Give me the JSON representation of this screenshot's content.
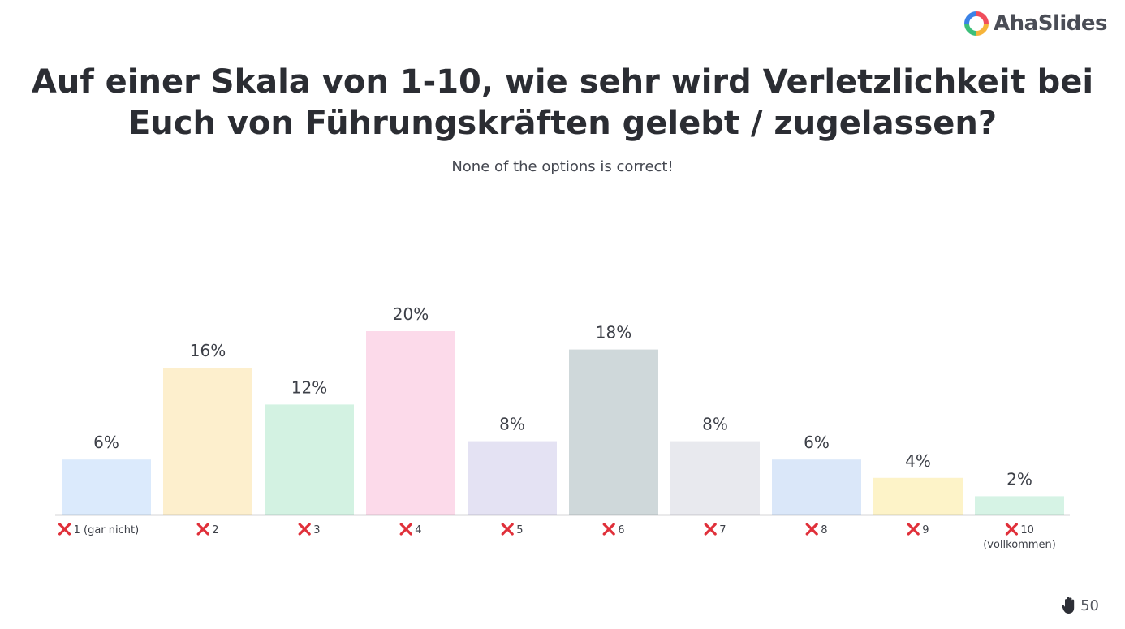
{
  "brand": {
    "name": "AhaSlides",
    "logo_colors": [
      "#f04d5c",
      "#f6b43a",
      "#3cbf7a",
      "#3b82e6"
    ]
  },
  "question": {
    "title": "Auf einer Skala von 1-10, wie sehr wird Verletzlichkeit bei Euch von Führungskräften gelebt / zugelassen?",
    "feedback": "None of the options is correct!"
  },
  "footer": {
    "responses": "50",
    "icon": "hand-icon"
  },
  "chart_data": {
    "type": "bar",
    "categories": [
      "1 (gar nicht)",
      "2",
      "3",
      "4",
      "5",
      "6",
      "7",
      "8",
      "9",
      "10 (vollkommen)"
    ],
    "values": [
      6,
      16,
      12,
      20,
      8,
      18,
      8,
      6,
      4,
      2
    ],
    "value_labels": [
      "6%",
      "16%",
      "12%",
      "20%",
      "8%",
      "18%",
      "8%",
      "6%",
      "4%",
      "2%"
    ],
    "colors": [
      "#dbeafc",
      "#fdefcd",
      "#d3f2e2",
      "#fcdaea",
      "#e4e2f3",
      "#cfd8da",
      "#e8e9ee",
      "#dae7f9",
      "#fdf3c8",
      "#d6f3e5"
    ],
    "correct": [
      false,
      false,
      false,
      false,
      false,
      false,
      false,
      false,
      false,
      false
    ],
    "incorrect_icon": "cross-icon",
    "ylim": [
      0,
      20
    ],
    "grid": false,
    "legend": "none"
  }
}
